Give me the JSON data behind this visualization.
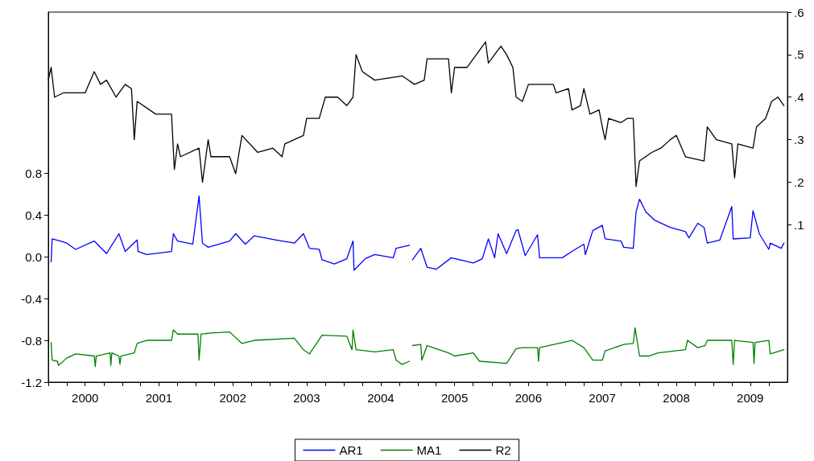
{
  "chart_data": {
    "type": "line",
    "xlim": [
      "2000-01-01",
      "2010-01-01"
    ],
    "xticks": [
      {
        "value": "2000-01-01",
        "label": null
      },
      {
        "value": "2000-04-01",
        "label": null
      },
      {
        "value": "2000-07-01",
        "label": "2000"
      },
      {
        "value": "2000-10-01",
        "label": null
      },
      {
        "value": "2001-01-01",
        "label": null
      },
      {
        "value": "2001-04-01",
        "label": null
      },
      {
        "value": "2001-07-01",
        "label": "2001"
      },
      {
        "value": "2001-10-01",
        "label": null
      },
      {
        "value": "2002-01-01",
        "label": null
      },
      {
        "value": "2002-04-01",
        "label": null
      },
      {
        "value": "2002-07-01",
        "label": "2002"
      },
      {
        "value": "2002-10-01",
        "label": null
      },
      {
        "value": "2003-01-01",
        "label": null
      },
      {
        "value": "2003-04-01",
        "label": null
      },
      {
        "value": "2003-07-01",
        "label": "2003"
      },
      {
        "value": "2003-10-01",
        "label": null
      },
      {
        "value": "2004-01-01",
        "label": null
      },
      {
        "value": "2004-04-01",
        "label": null
      },
      {
        "value": "2004-07-01",
        "label": "2004"
      },
      {
        "value": "2004-10-01",
        "label": null
      },
      {
        "value": "2005-01-01",
        "label": null
      },
      {
        "value": "2005-04-01",
        "label": null
      },
      {
        "value": "2005-07-01",
        "label": "2005"
      },
      {
        "value": "2005-10-01",
        "label": null
      },
      {
        "value": "2006-01-01",
        "label": null
      },
      {
        "value": "2006-04-01",
        "label": null
      },
      {
        "value": "2006-07-01",
        "label": "2006"
      },
      {
        "value": "2006-10-01",
        "label": null
      },
      {
        "value": "2007-01-01",
        "label": null
      },
      {
        "value": "2007-04-01",
        "label": null
      },
      {
        "value": "2007-07-01",
        "label": "2007"
      },
      {
        "value": "2007-10-01",
        "label": null
      },
      {
        "value": "2008-01-01",
        "label": null
      },
      {
        "value": "2008-04-01",
        "label": null
      },
      {
        "value": "2008-07-01",
        "label": "2008"
      },
      {
        "value": "2008-10-01",
        "label": null
      },
      {
        "value": "2009-01-01",
        "label": null
      },
      {
        "value": "2009-04-01",
        "label": null
      },
      {
        "value": "2009-07-01",
        "label": "2009"
      },
      {
        "value": "2009-10-01",
        "label": null
      }
    ],
    "ylim": [
      -1.2,
      2.34
    ],
    "yticks": [
      -1.2,
      -0.8,
      -0.4,
      {
        "value": 0,
        "label": "0.0"
      },
      0.4,
      0.8
    ],
    "y2lim": [
      -0.27,
      0.6
    ],
    "y2ticks": [
      {
        "value": 0.1,
        "label": ".1"
      },
      {
        "value": 0.2,
        "label": ".2"
      },
      {
        "value": 0.3,
        "label": ".3"
      },
      {
        "value": 0.4,
        "label": ".4"
      },
      {
        "value": 0.5,
        "label": ".5"
      },
      {
        "value": 0.6,
        "label": ".6"
      }
    ],
    "legend": "bottom",
    "grid": false,
    "marker": "none",
    "line_style": "solid",
    "series": [
      {
        "name": "AR1",
        "color": "#0000ff",
        "x": [
          "2000-01-15",
          "2000-01-20",
          "2000-03-01",
          "2000-04-01",
          "2000-05-15",
          "2000-08-15",
          "2000-10-15",
          "2000-12-15",
          "2001-01-15",
          "2001-03-15",
          "2001-03-20",
          "2001-05-01",
          "2001-09-01",
          "2001-09-10",
          "2001-10-01",
          "2001-12-15",
          "2002-01-15",
          "2002-02-01",
          "2002-03-01",
          "2002-06-15",
          "2002-07-15",
          "2002-09-01",
          "2002-10-15",
          "2003-02-01",
          "2003-05-01",
          "2003-06-15",
          "2003-07-15",
          "2003-09-01",
          "2003-09-15",
          "2003-11-15",
          "2004-01-15",
          "2004-02-15",
          "2004-02-20",
          "2004-04-15",
          "2004-06-01",
          "2004-09-01",
          "2004-09-15",
          "2004-11-20",
          "2004-11-28",
          "2004-12-05",
          "2005-01-15",
          "2005-02-15",
          "2005-04-01",
          "2005-06-15",
          "2005-10-01",
          "2005-11-15",
          "2005-12-15",
          "2006-01-15",
          "2006-02-01",
          "2006-03-15",
          "2006-05-01",
          "2006-05-10",
          "2006-06-15",
          "2006-08-15",
          "2006-08-25",
          "2006-12-15",
          "2007-02-01",
          "2007-04-01",
          "2007-04-08",
          "2007-05-15",
          "2007-07-01",
          "2007-07-15",
          "2007-10-01",
          "2007-10-15",
          "2007-12-01",
          "2007-12-15",
          "2008-01-01",
          "2008-02-01",
          "2008-03-15",
          "2008-06-01",
          "2008-08-15",
          "2008-09-01",
          "2008-10-15",
          "2008-11-15",
          "2008-12-01",
          "2009-02-01",
          "2009-04-01",
          "2009-04-08",
          "2009-07-01",
          "2009-07-15",
          "2009-08-15",
          "2009-10-01",
          "2009-10-08",
          "2009-12-01",
          "2009-12-15"
        ],
        "values": [
          -0.05,
          0.17,
          0.15,
          0.13,
          0.07,
          0.15,
          0.03,
          0.22,
          0.05,
          0.16,
          0.05,
          0.02,
          0.05,
          0.22,
          0.15,
          0.12,
          0.58,
          0.13,
          0.09,
          0.15,
          0.22,
          0.12,
          0.2,
          0.16,
          0.13,
          0.22,
          0.08,
          0.07,
          -0.03,
          -0.07,
          -0.02,
          0.15,
          -0.13,
          -0.02,
          0.02,
          -0.01,
          0.08,
          0.11,
          null,
          -0.03,
          0.08,
          -0.1,
          -0.12,
          -0.01,
          -0.06,
          -0.02,
          0.17,
          -0.01,
          0.22,
          0.03,
          0.25,
          0.26,
          0.01,
          0.21,
          -0.01,
          -0.01,
          0.05,
          0.12,
          0.02,
          0.25,
          0.3,
          0.17,
          0.15,
          0.09,
          0.08,
          0.43,
          0.55,
          0.43,
          0.35,
          0.28,
          0.24,
          0.18,
          0.32,
          0.28,
          0.13,
          0.16,
          0.48,
          0.17,
          0.18,
          0.44,
          0.22,
          0.07,
          0.13,
          0.08,
          0.13
        ]
      },
      {
        "name": "MA1",
        "color": "#008000",
        "x": [
          "2000-01-15",
          "2000-01-20",
          "2000-02-15",
          "2000-02-20",
          "2000-04-01",
          "2000-05-15",
          "2000-08-15",
          "2000-08-20",
          "2000-08-25",
          "2000-11-01",
          "2000-11-05",
          "2000-11-10",
          "2000-12-15",
          "2000-12-20",
          "2000-12-25",
          "2001-03-01",
          "2001-03-15",
          "2001-05-01",
          "2001-09-01",
          "2001-09-10",
          "2001-10-01",
          "2002-01-10",
          "2002-01-15",
          "2002-01-25",
          "2002-03-15",
          "2002-06-15",
          "2002-08-15",
          "2002-10-15",
          "2003-05-01",
          "2003-06-15",
          "2003-07-15",
          "2003-09-15",
          "2004-01-15",
          "2004-02-10",
          "2004-02-15",
          "2004-03-01",
          "2004-06-01",
          "2004-09-01",
          "2004-09-15",
          "2004-10-15",
          "2004-11-20",
          "2004-11-28",
          "2004-12-05",
          "2005-01-15",
          "2005-01-20",
          "2005-02-15",
          "2005-06-01",
          "2005-07-01",
          "2005-10-01",
          "2005-11-01",
          "2006-03-15",
          "2006-05-01",
          "2006-06-01",
          "2006-08-15",
          "2006-08-20",
          "2006-08-25",
          "2007-02-01",
          "2007-04-01",
          "2007-05-15",
          "2007-07-01",
          "2007-07-15",
          "2007-10-15",
          "2007-12-01",
          "2007-12-10",
          "2008-01-01",
          "2008-02-15",
          "2008-04-01",
          "2008-08-15",
          "2008-08-25",
          "2008-10-15",
          "2008-11-20",
          "2008-12-01",
          "2009-04-01",
          "2009-04-08",
          "2009-04-15",
          "2009-07-15",
          "2009-07-20",
          "2009-07-25",
          "2009-10-01",
          "2009-10-08",
          "2009-12-15"
        ],
        "values": [
          -0.82,
          -0.99,
          -1.0,
          -1.04,
          -0.97,
          -0.93,
          -0.95,
          -1.05,
          -0.95,
          -0.92,
          -1.04,
          -0.92,
          -0.95,
          -1.03,
          -0.95,
          -0.92,
          -0.83,
          -0.8,
          -0.8,
          -0.7,
          -0.74,
          -0.74,
          -0.99,
          -0.74,
          -0.73,
          -0.72,
          -0.83,
          -0.8,
          -0.78,
          -0.89,
          -0.93,
          -0.75,
          -0.76,
          -0.89,
          -0.7,
          -0.89,
          -0.91,
          -0.89,
          -0.99,
          -1.03,
          -1.0,
          null,
          -0.85,
          -0.84,
          -0.99,
          -0.85,
          -0.92,
          -0.95,
          -0.92,
          -1.0,
          -1.02,
          -0.88,
          -0.87,
          -0.87,
          -1.0,
          -0.87,
          -0.8,
          -0.87,
          -0.99,
          -0.99,
          -0.9,
          -0.84,
          -0.83,
          -0.68,
          -0.95,
          -0.95,
          -0.92,
          -0.89,
          -0.8,
          -0.87,
          -0.85,
          -0.8,
          -0.8,
          -1.03,
          -0.8,
          -0.82,
          -1.02,
          -0.82,
          -0.8,
          -0.93,
          -0.89
        ]
      },
      {
        "name": "R2",
        "color": "#000000",
        "axis": "y2",
        "x": [
          "2000-01-01",
          "2000-01-15",
          "2000-02-01",
          "2000-03-15",
          "2000-07-01",
          "2000-08-15",
          "2000-09-15",
          "2000-10-15",
          "2000-12-01",
          "2001-01-15",
          "2001-02-15",
          "2001-03-01",
          "2001-03-15",
          "2001-06-15",
          "2001-09-01",
          "2001-09-15",
          "2001-10-01",
          "2001-10-15",
          "2002-01-15",
          "2002-02-01",
          "2002-03-01",
          "2002-03-15",
          "2002-06-15",
          "2002-07-15",
          "2002-08-01",
          "2002-08-15",
          "2002-11-01",
          "2003-01-15",
          "2003-03-01",
          "2003-03-15",
          "2003-06-15",
          "2003-07-01",
          "2003-09-01",
          "2003-10-01",
          "2003-12-01",
          "2004-01-15",
          "2004-02-15",
          "2004-03-01",
          "2004-04-01",
          "2004-06-01",
          "2004-10-15",
          "2004-12-15",
          "2005-02-01",
          "2005-02-15",
          "2005-06-01",
          "2005-06-15",
          "2005-07-01",
          "2005-09-01",
          "2005-11-01",
          "2005-12-01",
          "2005-12-15",
          "2006-02-15",
          "2006-03-15",
          "2006-04-15",
          "2006-05-01",
          "2006-06-01",
          "2006-07-01",
          "2006-11-01",
          "2006-11-15",
          "2007-01-15",
          "2007-02-01",
          "2007-03-15",
          "2007-04-01",
          "2007-05-01",
          "2007-06-15",
          "2007-07-01",
          "2007-07-15",
          "2007-08-01",
          "2007-10-01",
          "2007-11-01",
          "2007-12-01",
          "2007-12-15",
          "2008-01-01",
          "2008-03-01",
          "2008-04-15",
          "2008-06-01",
          "2008-07-01",
          "2008-08-15",
          "2008-11-15",
          "2008-12-01",
          "2009-01-15",
          "2009-04-01",
          "2009-04-15",
          "2009-05-01",
          "2009-07-15",
          "2009-08-01",
          "2009-09-15",
          "2009-10-15",
          "2009-11-15",
          "2009-12-15"
        ],
        "values": [
          0.44,
          0.47,
          0.4,
          0.41,
          0.41,
          0.46,
          0.43,
          0.44,
          0.4,
          0.43,
          0.42,
          0.3,
          0.39,
          0.36,
          0.36,
          0.23,
          0.29,
          0.26,
          0.28,
          0.2,
          0.3,
          0.26,
          0.26,
          0.22,
          0.27,
          0.31,
          0.27,
          0.28,
          0.26,
          0.29,
          0.31,
          0.35,
          0.35,
          0.4,
          0.4,
          0.38,
          0.4,
          0.5,
          0.46,
          0.44,
          0.45,
          0.43,
          0.44,
          0.49,
          0.49,
          0.41,
          0.47,
          0.47,
          0.51,
          0.53,
          0.48,
          0.52,
          0.5,
          0.47,
          0.4,
          0.39,
          0.43,
          0.43,
          0.41,
          0.42,
          0.37,
          0.38,
          0.42,
          0.36,
          0.37,
          0.33,
          0.3,
          0.35,
          0.34,
          0.35,
          0.35,
          0.19,
          0.25,
          0.27,
          0.28,
          0.3,
          0.31,
          0.26,
          0.25,
          0.33,
          0.3,
          0.29,
          0.21,
          0.29,
          0.28,
          0.33,
          0.35,
          0.39,
          0.4,
          0.38
        ]
      }
    ]
  }
}
